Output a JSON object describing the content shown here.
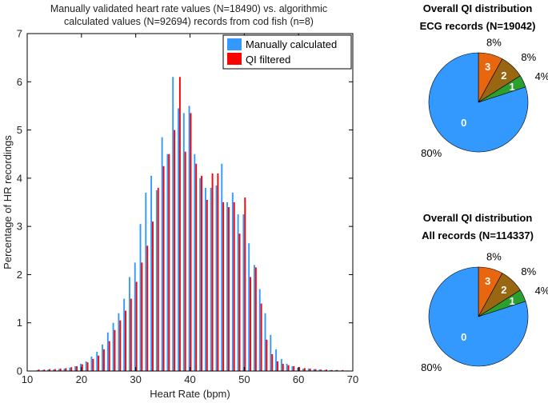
{
  "chart_data": [
    {
      "type": "bar",
      "title": "Manually validated heart rate values (N=18490) vs. algorithmic calculated values (N=92694) records from cod fish (n=8)",
      "title_lines": [
        "Manually validated heart rate values (N=18490) vs. algorithmic",
        "calculated values (N=92694) records from cod fish (n=8)"
      ],
      "xlabel": "Heart Rate (bpm)",
      "ylabel": "Percentage of HR recordings",
      "xlim": [
        10,
        70
      ],
      "ylim": [
        0,
        7
      ],
      "xticks": [
        "10",
        "20",
        "30",
        "40",
        "50",
        "60",
        "70"
      ],
      "yticks": [
        "0",
        "1",
        "2",
        "3",
        "4",
        "5",
        "6",
        "7"
      ],
      "grid": false,
      "legend_position": "top-right",
      "x": [
        12,
        13,
        14,
        15,
        16,
        17,
        18,
        19,
        20,
        21,
        22,
        23,
        24,
        25,
        26,
        27,
        28,
        29,
        30,
        31,
        32,
        33,
        34,
        35,
        36,
        37,
        38,
        39,
        40,
        41,
        42,
        43,
        44,
        45,
        46,
        47,
        48,
        49,
        50,
        51,
        52,
        53,
        54,
        55,
        56,
        57,
        58,
        59,
        60,
        61,
        62,
        63,
        64,
        65,
        66,
        67,
        68,
        69
      ],
      "series": [
        {
          "name": "Manually calculated",
          "color": "#3399ff",
          "values": [
            0.02,
            0.02,
            0.03,
            0.03,
            0.04,
            0.05,
            0.07,
            0.1,
            0.15,
            0.2,
            0.3,
            0.4,
            0.55,
            0.8,
            1.0,
            1.2,
            1.5,
            1.95,
            2.25,
            3.05,
            3.7,
            4.05,
            3.75,
            4.85,
            4.5,
            6.1,
            5.45,
            5.35,
            5.5,
            4.5,
            4.0,
            3.8,
            3.8,
            3.85,
            4.3,
            3.5,
            3.7,
            3.25,
            3.25,
            2.65,
            2.2,
            1.7,
            1.2,
            0.75,
            0.45,
            0.25,
            0.15,
            0.1,
            0.07,
            0.05,
            0.05,
            0.04,
            0.03,
            0.02,
            0.02,
            0.02,
            0.01,
            0.01
          ]
        },
        {
          "name": "QI filtered",
          "color": "#ff0000",
          "values": [
            0.03,
            0.03,
            0.04,
            0.04,
            0.05,
            0.06,
            0.08,
            0.1,
            0.14,
            0.18,
            0.25,
            0.32,
            0.45,
            0.62,
            0.85,
            1.05,
            1.25,
            1.5,
            1.85,
            2.25,
            2.6,
            3.1,
            3.8,
            4.25,
            4.5,
            5.0,
            6.1,
            4.55,
            5.35,
            4.3,
            4.05,
            3.55,
            4.1,
            4.1,
            3.5,
            3.4,
            3.5,
            2.85,
            3.6,
            1.95,
            2.15,
            1.4,
            0.65,
            0.35,
            0.2,
            0.15,
            0.12,
            0.1,
            0.08,
            0.06,
            0.05,
            0.04,
            0.03,
            0.03,
            0.02,
            0.02,
            0.02,
            0.01
          ]
        }
      ]
    },
    {
      "type": "pie",
      "title": "Overall QI distribution",
      "subtitle": "ECG records (N=19042)",
      "slices": [
        {
          "label": "0",
          "value": 80,
          "percent_label": "80%",
          "color": "#3399ff"
        },
        {
          "label": "1",
          "value": 4,
          "percent_label": "4%",
          "color": "#2ca02c"
        },
        {
          "label": "2",
          "value": 8,
          "percent_label": "8%",
          "color": "#996611"
        },
        {
          "label": "3",
          "value": 8,
          "percent_label": "8%",
          "color": "#e8660e"
        }
      ]
    },
    {
      "type": "pie",
      "title": "Overall QI distribution",
      "subtitle": "All records (N=114337)",
      "slices": [
        {
          "label": "0",
          "value": 80,
          "percent_label": "80%",
          "color": "#3399ff"
        },
        {
          "label": "1",
          "value": 4,
          "percent_label": "4%",
          "color": "#2ca02c"
        },
        {
          "label": "2",
          "value": 8,
          "percent_label": "8%",
          "color": "#996611"
        },
        {
          "label": "3",
          "value": 8,
          "percent_label": "8%",
          "color": "#e8660e"
        }
      ]
    }
  ]
}
